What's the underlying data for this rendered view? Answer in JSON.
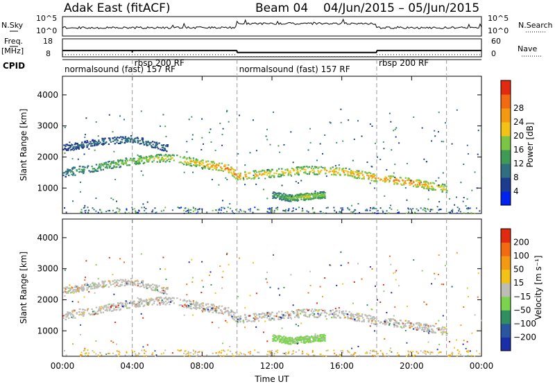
{
  "header": {
    "station": "Adak East (fitACF)",
    "beam": "Beam 04",
    "date_range": "04/Jun/2015 – 05/Jun/2015"
  },
  "strips": {
    "nsky_label": "N.Sky",
    "nsearch_label": "N.Search",
    "noise_ticks": [
      "10^5",
      "10^0"
    ],
    "freq_label": "Freq.",
    "freq_unit": "[MHz]",
    "freq_ticks": [
      "18",
      "8"
    ],
    "nave_label": "Nave",
    "nave_ticks": [
      "60",
      "0"
    ],
    "cpid_label": "CPID",
    "cpid_segments": [
      {
        "label": "normalsound (fast) 157 RF",
        "start_h": 0,
        "end_h": 4
      },
      {
        "label": "rbsp 200 RF",
        "start_h": 4,
        "end_h": 10
      },
      {
        "label": "normalsound (fast) 157 RF",
        "start_h": 10,
        "end_h": 18
      },
      {
        "label": "rbsp 200 RF",
        "start_h": 18,
        "end_h": 22
      }
    ],
    "freq_levels": [
      {
        "start_h": 0,
        "end_h": 10,
        "mhz": 11.5
      },
      {
        "start_h": 10,
        "end_h": 18,
        "mhz": 10.4
      },
      {
        "start_h": 18,
        "end_h": 24,
        "mhz": 11.5
      }
    ]
  },
  "boundaries_h": [
    4,
    10,
    18,
    22
  ],
  "chart_data": [
    {
      "type": "heatmap",
      "quantity": "power",
      "ylabel": "Slant Range [km]",
      "xlabel": "",
      "ylim": [
        180,
        4600
      ],
      "xlim_h": [
        0,
        24
      ],
      "yticks": [
        "1000",
        "2000",
        "3000",
        "4000"
      ],
      "colorbar": {
        "label": "Power [dB]",
        "ticks": [
          "4",
          "8",
          "12",
          "16",
          "20",
          "24",
          "28"
        ],
        "colors": [
          "#0022ee",
          "#1e3c8f",
          "#2f6f7f",
          "#3e9a55",
          "#7cc444",
          "#f2c316",
          "#f39a12",
          "#f26a12",
          "#e22a10"
        ]
      },
      "bands": [
        {
          "name": "main echo band",
          "path_h": [
            0,
            2,
            4,
            6,
            8,
            9.5,
            10,
            12,
            14,
            16,
            18,
            20,
            22
          ],
          "center_km": [
            1500,
            1700,
            1900,
            2000,
            1800,
            1650,
            1400,
            1500,
            1600,
            1550,
            1350,
            1200,
            1000
          ],
          "power_db": [
            10,
            14,
            18,
            20,
            24,
            28,
            26,
            22,
            22,
            24,
            26,
            28,
            20
          ]
        },
        {
          "name": "upper band",
          "path_h": [
            0,
            2,
            4,
            6
          ],
          "center_km": [
            2300,
            2500,
            2600,
            2300
          ],
          "power_db": [
            6,
            8,
            9,
            8
          ]
        },
        {
          "name": "low patch",
          "path_h": [
            12,
            13,
            14,
            15
          ],
          "center_km": [
            800,
            700,
            750,
            800
          ],
          "power_db": [
            12,
            16,
            20,
            16
          ]
        }
      ]
    },
    {
      "type": "heatmap",
      "quantity": "velocity",
      "ylabel": "Slant Range [km]",
      "xlabel": "Time UT",
      "ylim": [
        180,
        4600
      ],
      "xlim_h": [
        0,
        24
      ],
      "yticks": [
        "1000",
        "2000",
        "3000",
        "4000"
      ],
      "xticks": [
        "00:00",
        "04:00",
        "08:00",
        "12:00",
        "16:00",
        "20:00",
        "00:00"
      ],
      "colorbar": {
        "label": "Velocity [m s⁻¹]",
        "ticks": [
          "200",
          "100",
          "50",
          "15",
          "−15",
          "−50",
          "−100",
          "−200"
        ],
        "colors": [
          "#1a2ea8",
          "#2a55a0",
          "#2f8f5e",
          "#7cd44e",
          "#bdbdb5",
          "#f2c316",
          "#f39a12",
          "#f26a12",
          "#e22a10"
        ]
      }
    }
  ]
}
